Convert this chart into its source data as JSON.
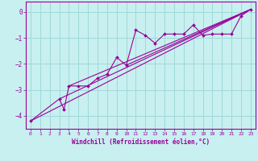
{
  "xlabel": "Windchill (Refroidissement éolien,°C)",
  "bg_color": "#c8f0f0",
  "line_color": "#990099",
  "grid_color": "#a0d8d8",
  "xlim": [
    -0.5,
    23.5
  ],
  "ylim": [
    -4.5,
    0.4
  ],
  "xticks": [
    0,
    1,
    2,
    3,
    4,
    5,
    6,
    7,
    8,
    9,
    10,
    11,
    12,
    13,
    14,
    15,
    16,
    17,
    18,
    19,
    20,
    21,
    22,
    23
  ],
  "yticks": [
    0,
    -1,
    -2,
    -3,
    -4
  ],
  "series": [
    [
      0,
      -4.2
    ],
    [
      3,
      -3.35
    ],
    [
      3.5,
      -3.75
    ],
    [
      4,
      -2.85
    ],
    [
      5,
      -2.85
    ],
    [
      6,
      -2.85
    ],
    [
      7,
      -2.55
    ],
    [
      8,
      -2.4
    ],
    [
      9,
      -1.75
    ],
    [
      10,
      -2.05
    ],
    [
      11,
      -0.7
    ],
    [
      12,
      -0.9
    ],
    [
      13,
      -1.2
    ],
    [
      14,
      -0.85
    ],
    [
      15,
      -0.85
    ],
    [
      16,
      -0.85
    ],
    [
      17,
      -0.5
    ],
    [
      18,
      -0.9
    ],
    [
      19,
      -0.85
    ],
    [
      20,
      -0.85
    ],
    [
      21,
      -0.85
    ],
    [
      22,
      -0.15
    ],
    [
      23,
      0.1
    ]
  ],
  "straight_lines": [
    [
      [
        0,
        -4.2
      ],
      [
        23,
        0.1
      ]
    ],
    [
      [
        3,
        -3.35
      ],
      [
        23,
        0.1
      ]
    ],
    [
      [
        4,
        -2.85
      ],
      [
        23,
        0.1
      ]
    ],
    [
      [
        10,
        -2.05
      ],
      [
        23,
        0.1
      ]
    ]
  ]
}
